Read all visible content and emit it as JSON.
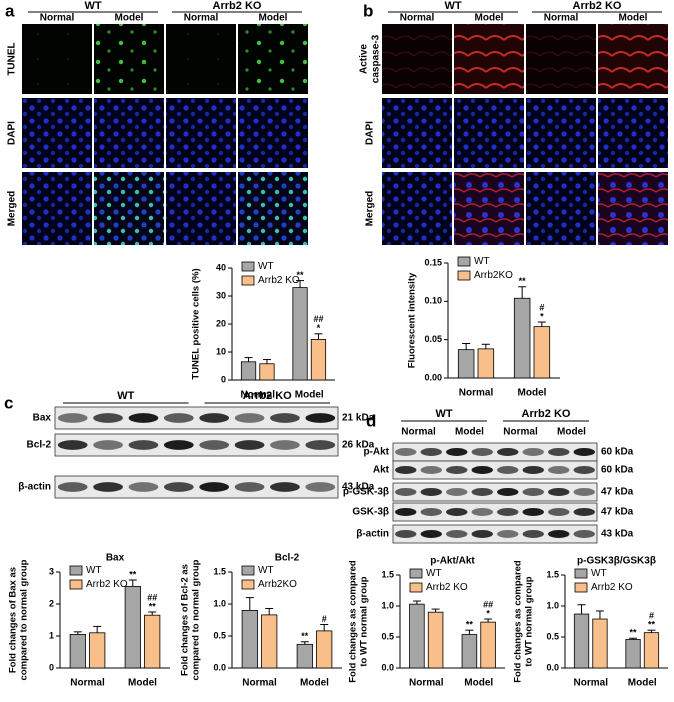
{
  "panels": {
    "a": {
      "label": "a",
      "groups": [
        "WT",
        "Arrb2 KO"
      ],
      "columns": [
        "Normal",
        "Model",
        "Normal",
        "Model"
      ],
      "rows": [
        "TUNEL",
        "DAPI",
        "Merged"
      ]
    },
    "b": {
      "label": "b",
      "groups": [
        "WT",
        "Arrb2 KO"
      ],
      "columns": [
        "Normal",
        "Model",
        "Normal",
        "Model"
      ],
      "rows": [
        [
          "Active",
          "caspase-3"
        ],
        "DAPI",
        "Merged"
      ]
    },
    "c": {
      "label": "c",
      "groups": [
        "WT",
        "Arrb2 KO"
      ],
      "bands": [
        {
          "name": "Bax",
          "size": "21 kDa"
        },
        {
          "name": "Bcl-2",
          "size": "26 kDa"
        },
        {
          "name": "β-actin",
          "size": "43 kDa"
        }
      ]
    },
    "d": {
      "label": "d",
      "groups": [
        "WT",
        "Arrb2 KO"
      ],
      "columns": [
        "Normal",
        "Model",
        "Normal",
        "Model"
      ],
      "bands": [
        {
          "name": "p-Akt",
          "size": "60 kDa"
        },
        {
          "name": "Akt",
          "size": "60 kDa"
        },
        {
          "name": "p-GSK-3β",
          "size": "47 kDa"
        },
        {
          "name": "GSK-3β",
          "size": "47 kDa"
        },
        {
          "name": "β-actin",
          "size": "43 kDa"
        }
      ]
    }
  },
  "chart_data": [
    {
      "type": "bar",
      "ylabel": "TUNEL positive cells (%)",
      "categories": [
        "Normal",
        "Model"
      ],
      "ylim": [
        0,
        40
      ],
      "yticks": [
        0,
        10,
        20,
        30,
        40
      ],
      "series": [
        {
          "name": "WT",
          "color": "#a6a6a6",
          "values": [
            6.5,
            33
          ],
          "errors": [
            1.5,
            2.5
          ],
          "significance": [
            null,
            "**"
          ]
        },
        {
          "name": "Arrb2 KO",
          "color": "#f9bf8a",
          "values": [
            5.8,
            14.5
          ],
          "errors": [
            1.5,
            2
          ],
          "significance": [
            null,
            [
              "##",
              "*"
            ]
          ]
        }
      ]
    },
    {
      "type": "bar",
      "ylabel": "Fluorescent intensity",
      "categories": [
        "Normal",
        "Model"
      ],
      "ylim": [
        0,
        0.15
      ],
      "yticks": [
        {
          "value": 0,
          "label": "0.00"
        },
        {
          "value": 0.05,
          "label": "0.05"
        },
        {
          "value": 0.1,
          "label": "0.10"
        },
        {
          "value": 0.15,
          "label": "0.15"
        }
      ],
      "series": [
        {
          "name": "WT",
          "color": "#a6a6a6",
          "values": [
            0.037,
            0.104
          ],
          "errors": [
            0.008,
            0.015
          ],
          "significance": [
            null,
            "**"
          ]
        },
        {
          "name": "Arrb2KO",
          "color": "#f9bf8a",
          "values": [
            0.038,
            0.067
          ],
          "errors": [
            0.006,
            0.006
          ],
          "significance": [
            null,
            [
              "#",
              "*"
            ]
          ]
        }
      ]
    },
    {
      "type": "bar",
      "title": "Bax",
      "ylabel": [
        "Fold changes of  Bax as",
        "compared to normal group"
      ],
      "categories": [
        "Normal",
        "Model"
      ],
      "ylim": [
        0,
        3
      ],
      "yticks": [
        0,
        1,
        2,
        3
      ],
      "series": [
        {
          "name": "WT",
          "color": "#a6a6a6",
          "values": [
            1.05,
            2.55
          ],
          "errors": [
            0.08,
            0.2
          ],
          "significance": [
            null,
            "**"
          ]
        },
        {
          "name": "Arrb2 KO",
          "color": "#f9bf8a",
          "values": [
            1.1,
            1.65
          ],
          "errors": [
            0.2,
            0.1
          ],
          "significance": [
            null,
            [
              "##",
              "**"
            ]
          ]
        }
      ]
    },
    {
      "type": "bar",
      "title": "Bcl-2",
      "ylabel": [
        "Fold changes of  Bcl-2 as",
        "compared to normal group"
      ],
      "categories": [
        "Normal",
        "Model"
      ],
      "ylim": [
        0,
        1.5
      ],
      "yticks": [
        {
          "value": 0,
          "label": "0.0"
        },
        {
          "value": 0.5,
          "label": "0.5"
        },
        {
          "value": 1,
          "label": "1.0"
        },
        {
          "value": 1.5,
          "label": "1.5"
        }
      ],
      "series": [
        {
          "name": "WT",
          "color": "#a6a6a6",
          "values": [
            0.9,
            0.37
          ],
          "errors": [
            0.2,
            0.04
          ],
          "significance": [
            null,
            "**"
          ]
        },
        {
          "name": "Arrb2KO",
          "color": "#f9bf8a",
          "values": [
            0.83,
            0.58
          ],
          "errors": [
            0.1,
            0.1
          ],
          "significance": [
            null,
            "#"
          ]
        }
      ]
    },
    {
      "type": "bar",
      "title": "p-Akt/Akt",
      "ylabel": [
        "Fold changes as compared",
        "to WT normal group"
      ],
      "categories": [
        "Normal",
        "Model"
      ],
      "ylim": [
        0,
        1.5
      ],
      "yticks": [
        {
          "value": 0,
          "label": "0.0"
        },
        {
          "value": 0.5,
          "label": "0.5"
        },
        {
          "value": 1,
          "label": "1.0"
        },
        {
          "value": 1.5,
          "label": "1.5"
        }
      ],
      "series": [
        {
          "name": "WT",
          "color": "#a6a6a6",
          "values": [
            1.03,
            0.54
          ],
          "errors": [
            0.05,
            0.07
          ],
          "significance": [
            null,
            "**"
          ]
        },
        {
          "name": "Arrb2 KO",
          "color": "#f9bf8a",
          "values": [
            0.9,
            0.74
          ],
          "errors": [
            0.05,
            0.05
          ],
          "significance": [
            null,
            [
              "##",
              "*"
            ]
          ]
        }
      ]
    },
    {
      "type": "bar",
      "title": "p-GSK3β/GSK3β",
      "ylabel": [
        "Fold changes as compared",
        "to WT normal group"
      ],
      "categories": [
        "Normal",
        "Model"
      ],
      "ylim": [
        0,
        1.5
      ],
      "yticks": [
        {
          "value": 0,
          "label": "0.0"
        },
        {
          "value": 0.5,
          "label": "0.5"
        },
        {
          "value": 1,
          "label": "1.0"
        },
        {
          "value": 1.5,
          "label": "1.5"
        }
      ],
      "series": [
        {
          "name": "WT",
          "color": "#a6a6a6",
          "values": [
            0.87,
            0.46
          ],
          "errors": [
            0.15,
            0.02
          ],
          "significance": [
            null,
            "**"
          ]
        },
        {
          "name": "Arrb2 KO",
          "color": "#f9bf8a",
          "values": [
            0.79,
            0.57
          ],
          "errors": [
            0.13,
            0.04
          ],
          "significance": [
            null,
            [
              "#",
              "**"
            ]
          ]
        }
      ]
    }
  ]
}
